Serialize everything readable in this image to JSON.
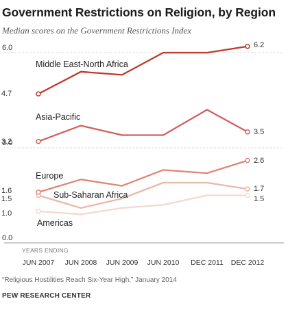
{
  "header": {
    "title": "Government Restrictions on Religion, by Region",
    "subtitle": "Median scores on the Government Restrictions Index"
  },
  "chart_data": {
    "type": "line",
    "x": [
      "JUN 2007",
      "JUN 2008",
      "JUN 2009",
      "JUN 2010",
      "DEC 2011",
      "DEC 2012"
    ],
    "x_caption": "YEARS ENDING",
    "ylim": [
      0,
      6.5
    ],
    "yticks": [
      {
        "value": 0,
        "label": "0.0"
      },
      {
        "value": 3,
        "label": "3.0"
      },
      {
        "value": 6,
        "label": "6.0"
      }
    ],
    "series": [
      {
        "name": "Middle East-North Africa",
        "values": [
          4.7,
          5.4,
          5.3,
          6.0,
          6.0,
          6.2
        ],
        "color": "#c0392b",
        "start_label": "4.7",
        "end_label": "6.2"
      },
      {
        "name": "Asia-Pacific",
        "values": [
          3.2,
          3.7,
          3.4,
          3.4,
          4.2,
          3.5
        ],
        "color": "#d05f5c",
        "start_label": "3.2",
        "end_label": "3.5"
      },
      {
        "name": "Europe",
        "values": [
          1.6,
          2.0,
          1.8,
          2.3,
          2.2,
          2.6
        ],
        "color": "#df8576",
        "start_label": "1.6",
        "end_label": "2.6"
      },
      {
        "name": "Sub-Saharan Africa",
        "values": [
          1.5,
          1.1,
          1.4,
          1.9,
          1.9,
          1.7
        ],
        "color": "#ebb7a8",
        "start_label": "1.5",
        "end_label": "1.7"
      },
      {
        "name": "Americas",
        "values": [
          1.0,
          0.9,
          1.1,
          1.2,
          1.5,
          1.5
        ],
        "color": "#f5d8cf",
        "start_label": "1.0",
        "end_label": "1.5"
      }
    ]
  },
  "footer": {
    "source": "“Religious Hostilities Reach Six-Year High,” January 2014",
    "organization": "PEW RESEARCH CENTER"
  }
}
